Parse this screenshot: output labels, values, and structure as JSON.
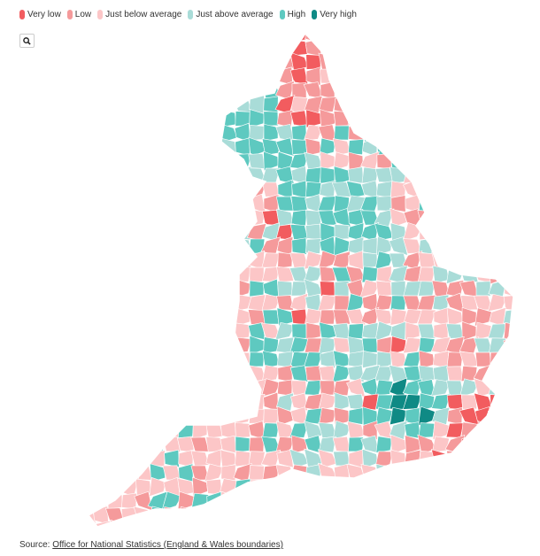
{
  "legend": {
    "items": [
      {
        "label": "Very low",
        "color": "#f25c5f"
      },
      {
        "label": "Low",
        "color": "#f59a9b"
      },
      {
        "label": "Just below average",
        "color": "#fcc6c7"
      },
      {
        "label": "Just above average",
        "color": "#a9dcd8"
      },
      {
        "label": "High",
        "color": "#5ec9c0"
      },
      {
        "label": "Very high",
        "color": "#0f8a85"
      }
    ]
  },
  "source": {
    "label": "Source:",
    "link": "Office for National Statistics (England & Wales boundaries)"
  }
}
